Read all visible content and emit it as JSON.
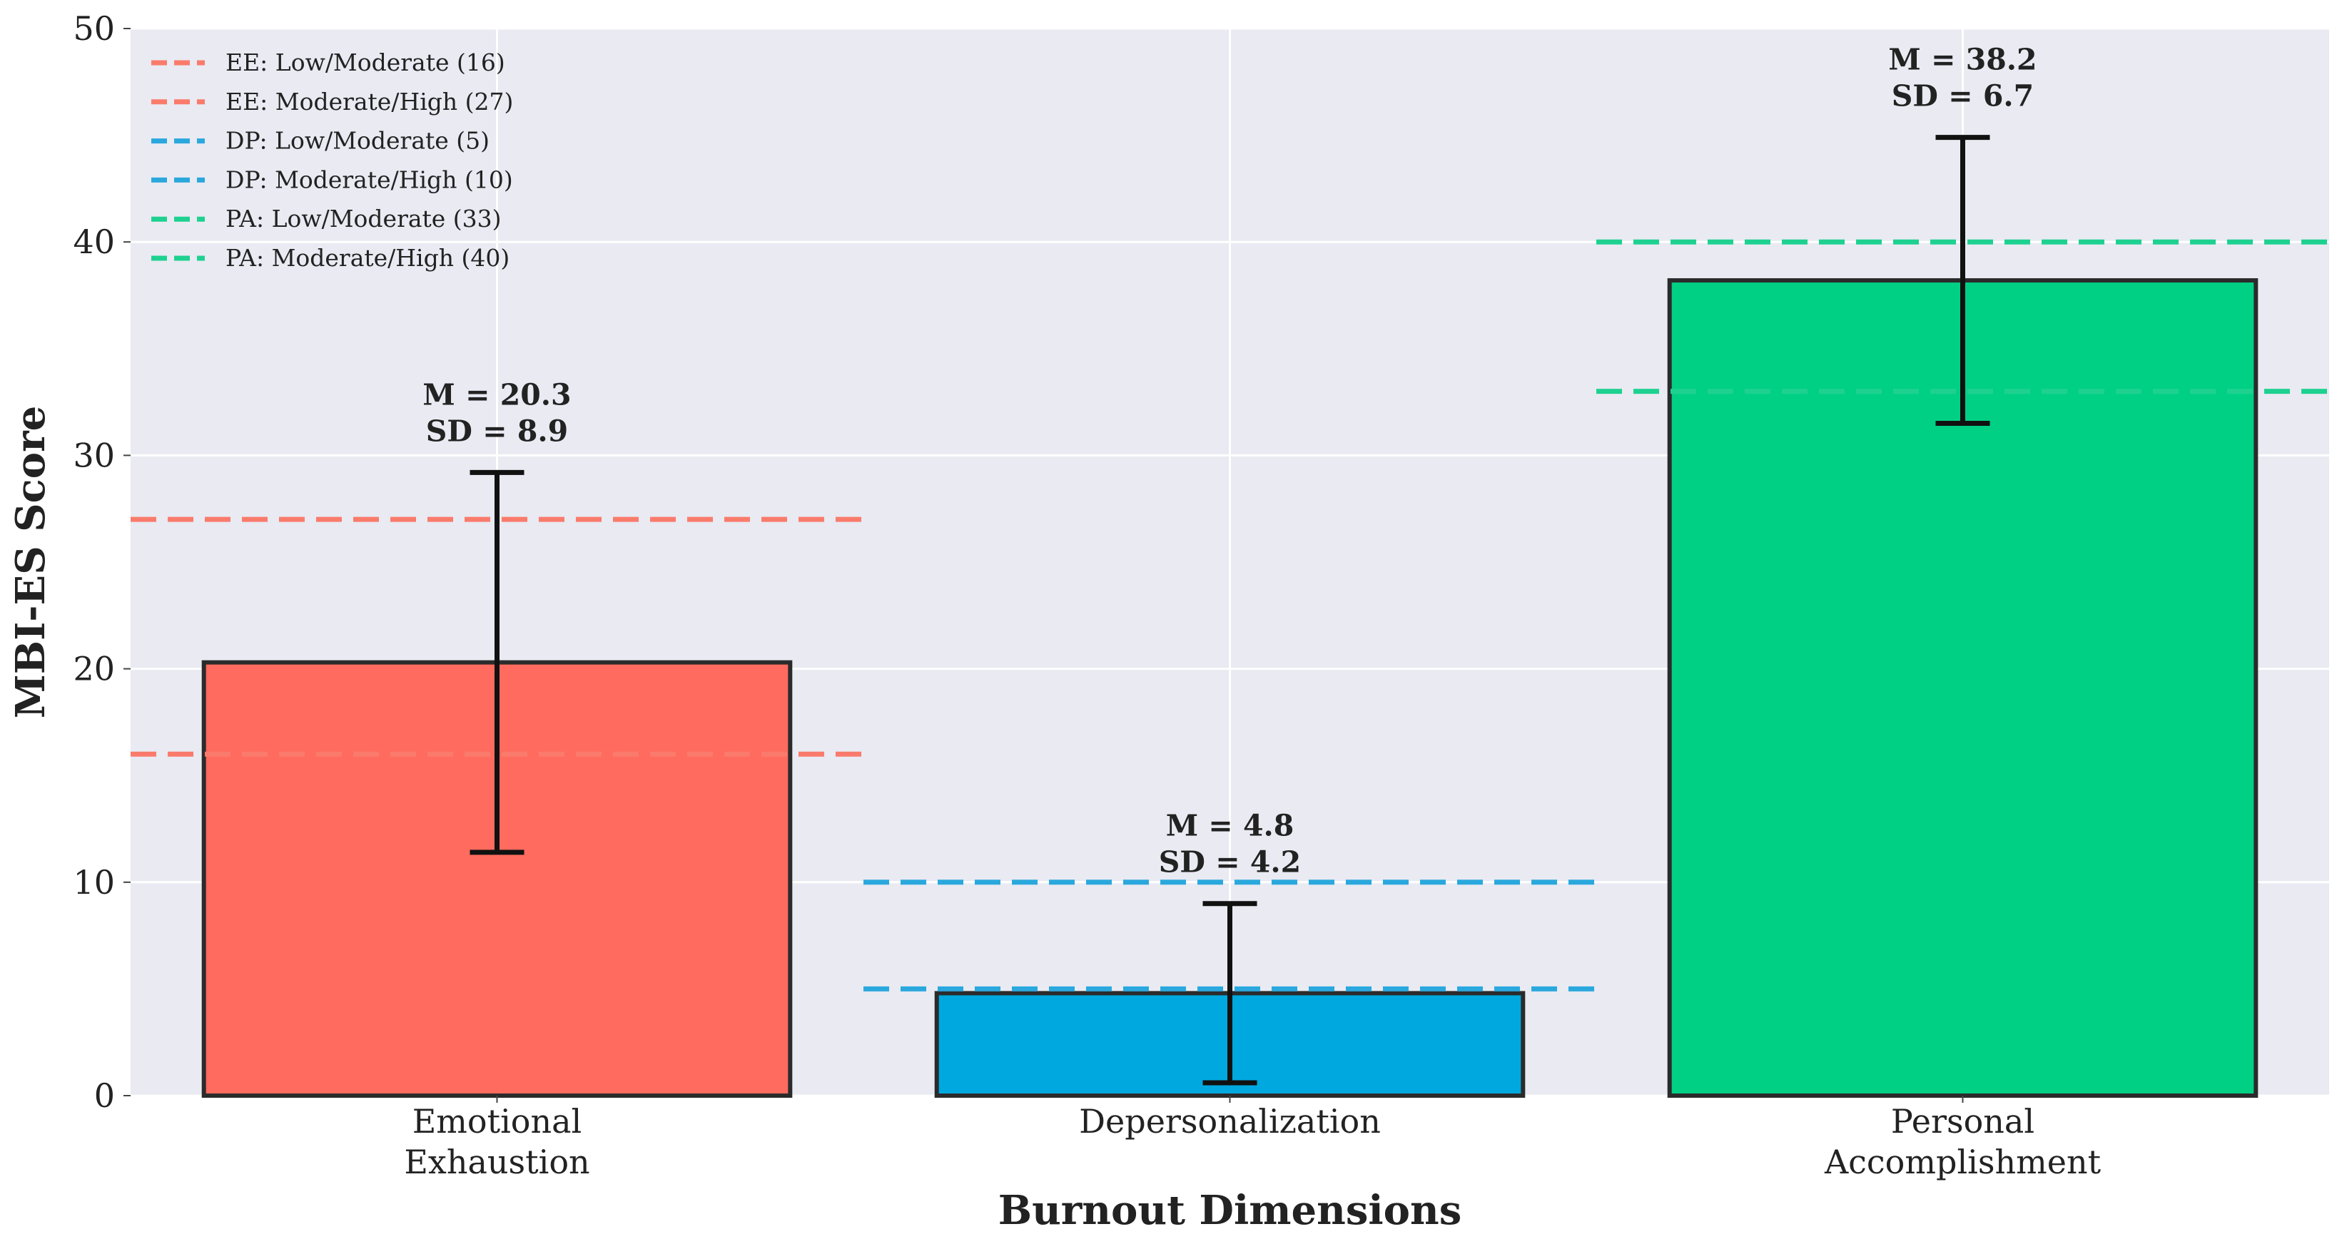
{
  "chart_data": {
    "type": "bar",
    "xlabel": "Burnout Dimensions",
    "ylabel": "MBI-ES Score",
    "ylim": [
      0,
      50
    ],
    "yticks": [
      0,
      10,
      20,
      30,
      40,
      50
    ],
    "grid": true,
    "legend_position": "top-left",
    "categories": [
      {
        "lines": [
          "Emotional",
          "Exhaustion"
        ]
      },
      {
        "lines": [
          "Depersonalization"
        ]
      },
      {
        "lines": [
          "Personal",
          "Accomplishment"
        ]
      }
    ],
    "values": [
      20.3,
      4.8,
      38.2
    ],
    "error": [
      8.9,
      4.2,
      6.7
    ],
    "bar_colors": [
      "#ff6b5e",
      "#00a8e0",
      "#00d084"
    ],
    "annotations": [
      {
        "m": "M = 20.3",
        "sd": "SD = 8.9"
      },
      {
        "m": "M = 4.8",
        "sd": "SD = 4.2"
      },
      {
        "m": "M = 38.2",
        "sd": "SD = 6.7"
      }
    ],
    "reference_lines": [
      {
        "label": "EE: Low/Moderate (16)",
        "value": 16,
        "category": 0,
        "color": "#fa7b6b"
      },
      {
        "label": "EE: Moderate/High (27)",
        "value": 27,
        "category": 0,
        "color": "#fa7b6b"
      },
      {
        "label": "DP: Low/Moderate (5)",
        "value": 5,
        "category": 1,
        "color": "#2aa8de"
      },
      {
        "label": "DP: Moderate/High (10)",
        "value": 10,
        "category": 1,
        "color": "#2aa8de"
      },
      {
        "label": "PA: Low/Moderate (33)",
        "value": 33,
        "category": 2,
        "color": "#1ed190"
      },
      {
        "label": "PA: Moderate/High (40)",
        "value": 40,
        "category": 2,
        "color": "#1ed190"
      }
    ],
    "colors": {
      "plot_background": "#e9eaf2",
      "grid": "#ffffff",
      "bar_edge": "#2b2b2b",
      "error_bar": "#111111"
    }
  }
}
